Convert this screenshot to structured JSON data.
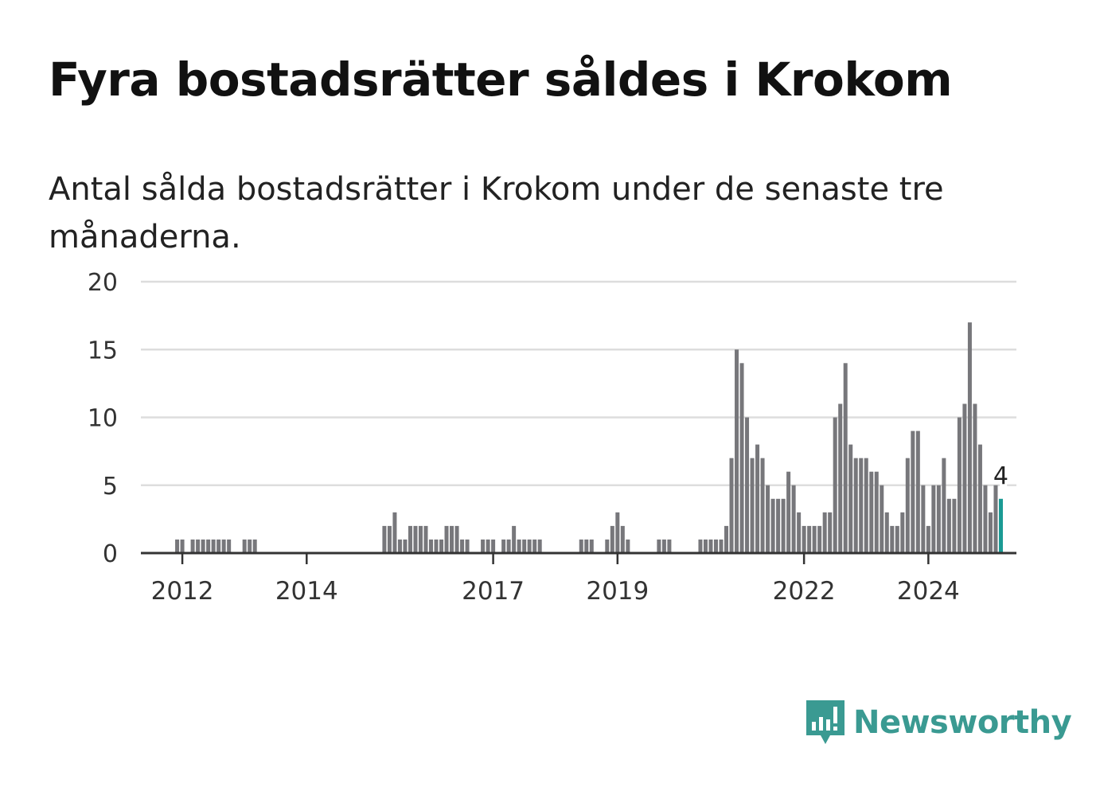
{
  "title": "Fyra bostadsrätter såldes i Krokom",
  "subtitle": "Antal sålda bostadsrätter i Krokom under de senaste tre månaderna.",
  "brand": {
    "name": "Newsworthy",
    "icon": "bar-chart-speech-bubble-icon",
    "color": "#3a9a92"
  },
  "colors": {
    "bar": "#77777b",
    "highlight": "#1a9a94",
    "grid": "#dddddd",
    "axis": "#333333"
  },
  "chart_data": {
    "type": "bar",
    "ylim": [
      0,
      20
    ],
    "yticks": [
      0,
      5,
      10,
      15,
      20
    ],
    "xticks": [
      "2012",
      "2014",
      "2017",
      "2019",
      "2022",
      "2024"
    ],
    "xtick_months": [
      "2012-01",
      "2014-01",
      "2017-01",
      "2019-01",
      "2022-01",
      "2024-01"
    ],
    "x_start": "2011-05",
    "x_end": "2025-06",
    "grid": true,
    "highlight_label": "4",
    "bars": [
      {
        "x": "2011-12",
        "value": 1
      },
      {
        "x": "2012-01",
        "value": 1
      },
      {
        "x": "2012-03",
        "value": 1
      },
      {
        "x": "2012-04",
        "value": 1
      },
      {
        "x": "2012-05",
        "value": 1
      },
      {
        "x": "2012-06",
        "value": 1
      },
      {
        "x": "2012-07",
        "value": 1
      },
      {
        "x": "2012-08",
        "value": 1
      },
      {
        "x": "2012-09",
        "value": 1
      },
      {
        "x": "2012-10",
        "value": 1
      },
      {
        "x": "2013-01",
        "value": 1
      },
      {
        "x": "2013-02",
        "value": 1
      },
      {
        "x": "2013-03",
        "value": 1
      },
      {
        "x": "2015-04",
        "value": 2
      },
      {
        "x": "2015-05",
        "value": 2
      },
      {
        "x": "2015-06",
        "value": 3
      },
      {
        "x": "2015-07",
        "value": 1
      },
      {
        "x": "2015-08",
        "value": 1
      },
      {
        "x": "2015-09",
        "value": 2
      },
      {
        "x": "2015-10",
        "value": 2
      },
      {
        "x": "2015-11",
        "value": 2
      },
      {
        "x": "2015-12",
        "value": 2
      },
      {
        "x": "2016-01",
        "value": 1
      },
      {
        "x": "2016-02",
        "value": 1
      },
      {
        "x": "2016-03",
        "value": 1
      },
      {
        "x": "2016-04",
        "value": 2
      },
      {
        "x": "2016-05",
        "value": 2
      },
      {
        "x": "2016-06",
        "value": 2
      },
      {
        "x": "2016-07",
        "value": 1
      },
      {
        "x": "2016-08",
        "value": 1
      },
      {
        "x": "2016-11",
        "value": 1
      },
      {
        "x": "2016-12",
        "value": 1
      },
      {
        "x": "2017-01",
        "value": 1
      },
      {
        "x": "2017-03",
        "value": 1
      },
      {
        "x": "2017-04",
        "value": 1
      },
      {
        "x": "2017-05",
        "value": 2
      },
      {
        "x": "2017-06",
        "value": 1
      },
      {
        "x": "2017-07",
        "value": 1
      },
      {
        "x": "2017-08",
        "value": 1
      },
      {
        "x": "2017-09",
        "value": 1
      },
      {
        "x": "2017-10",
        "value": 1
      },
      {
        "x": "2018-06",
        "value": 1
      },
      {
        "x": "2018-07",
        "value": 1
      },
      {
        "x": "2018-08",
        "value": 1
      },
      {
        "x": "2018-11",
        "value": 1
      },
      {
        "x": "2018-12",
        "value": 2
      },
      {
        "x": "2019-01",
        "value": 3
      },
      {
        "x": "2019-02",
        "value": 2
      },
      {
        "x": "2019-03",
        "value": 1
      },
      {
        "x": "2019-09",
        "value": 1
      },
      {
        "x": "2019-10",
        "value": 1
      },
      {
        "x": "2019-11",
        "value": 1
      },
      {
        "x": "2020-05",
        "value": 1
      },
      {
        "x": "2020-06",
        "value": 1
      },
      {
        "x": "2020-07",
        "value": 1
      },
      {
        "x": "2020-08",
        "value": 1
      },
      {
        "x": "2020-09",
        "value": 1
      },
      {
        "x": "2020-10",
        "value": 2
      },
      {
        "x": "2020-11",
        "value": 7
      },
      {
        "x": "2020-12",
        "value": 15
      },
      {
        "x": "2021-01",
        "value": 14
      },
      {
        "x": "2021-02",
        "value": 10
      },
      {
        "x": "2021-03",
        "value": 7
      },
      {
        "x": "2021-04",
        "value": 8
      },
      {
        "x": "2021-05",
        "value": 7
      },
      {
        "x": "2021-06",
        "value": 5
      },
      {
        "x": "2021-07",
        "value": 4
      },
      {
        "x": "2021-08",
        "value": 4
      },
      {
        "x": "2021-09",
        "value": 4
      },
      {
        "x": "2021-10",
        "value": 6
      },
      {
        "x": "2021-11",
        "value": 5
      },
      {
        "x": "2021-12",
        "value": 3
      },
      {
        "x": "2022-01",
        "value": 2
      },
      {
        "x": "2022-02",
        "value": 2
      },
      {
        "x": "2022-03",
        "value": 2
      },
      {
        "x": "2022-04",
        "value": 2
      },
      {
        "x": "2022-05",
        "value": 3
      },
      {
        "x": "2022-06",
        "value": 3
      },
      {
        "x": "2022-07",
        "value": 10
      },
      {
        "x": "2022-08",
        "value": 11
      },
      {
        "x": "2022-09",
        "value": 14
      },
      {
        "x": "2022-10",
        "value": 8
      },
      {
        "x": "2022-11",
        "value": 7
      },
      {
        "x": "2022-12",
        "value": 7
      },
      {
        "x": "2023-01",
        "value": 7
      },
      {
        "x": "2023-02",
        "value": 6
      },
      {
        "x": "2023-03",
        "value": 6
      },
      {
        "x": "2023-04",
        "value": 5
      },
      {
        "x": "2023-05",
        "value": 3
      },
      {
        "x": "2023-06",
        "value": 2
      },
      {
        "x": "2023-07",
        "value": 2
      },
      {
        "x": "2023-08",
        "value": 3
      },
      {
        "x": "2023-09",
        "value": 7
      },
      {
        "x": "2023-10",
        "value": 9
      },
      {
        "x": "2023-11",
        "value": 9
      },
      {
        "x": "2023-12",
        "value": 5
      },
      {
        "x": "2024-01",
        "value": 2
      },
      {
        "x": "2024-02",
        "value": 5
      },
      {
        "x": "2024-03",
        "value": 5
      },
      {
        "x": "2024-04",
        "value": 7
      },
      {
        "x": "2024-05",
        "value": 4
      },
      {
        "x": "2024-06",
        "value": 4
      },
      {
        "x": "2024-07",
        "value": 10
      },
      {
        "x": "2024-08",
        "value": 11
      },
      {
        "x": "2024-09",
        "value": 17
      },
      {
        "x": "2024-10",
        "value": 11
      },
      {
        "x": "2024-11",
        "value": 8
      },
      {
        "x": "2024-12",
        "value": 5
      },
      {
        "x": "2025-01",
        "value": 3
      },
      {
        "x": "2025-02",
        "value": 5
      },
      {
        "x": "2025-03",
        "value": 4,
        "highlight": true
      }
    ]
  }
}
